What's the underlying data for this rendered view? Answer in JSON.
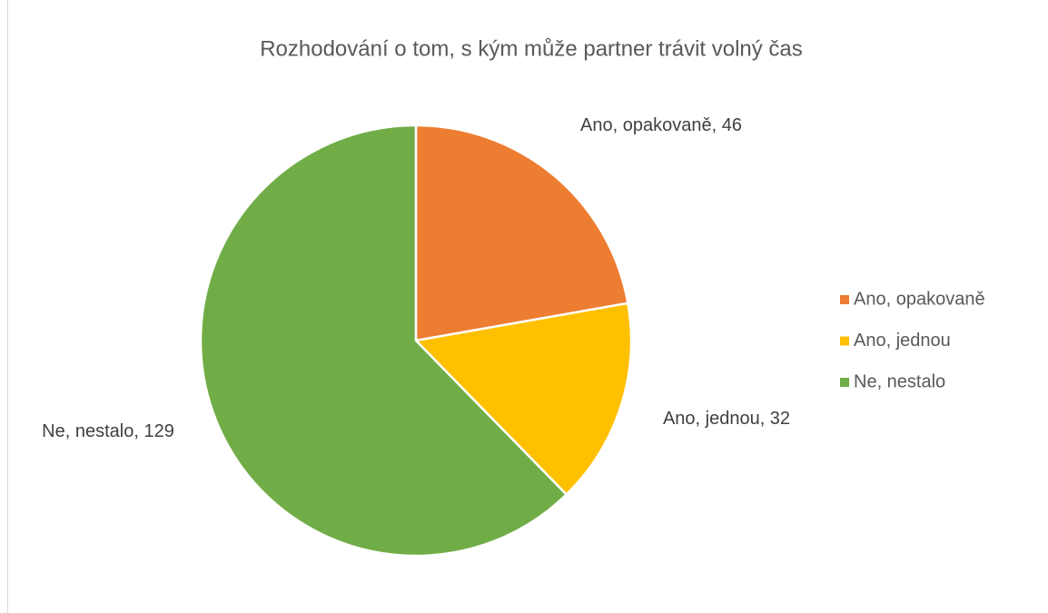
{
  "chart_data": {
    "type": "pie",
    "title": "Rozhodování o tom, s kým může partner trávit volný čas",
    "categories": [
      "Ano, opakovaně",
      "Ano, jednou",
      "Ne, nestalo"
    ],
    "values": [
      46,
      32,
      129
    ],
    "value_labels": [
      "Ano, opakovaně, 46",
      "Ano, jednou, 32",
      "Ne, nestalo, 129"
    ],
    "colors": [
      "#ed7d31",
      "#ffc000",
      "#70ad47"
    ],
    "legend": "right"
  }
}
